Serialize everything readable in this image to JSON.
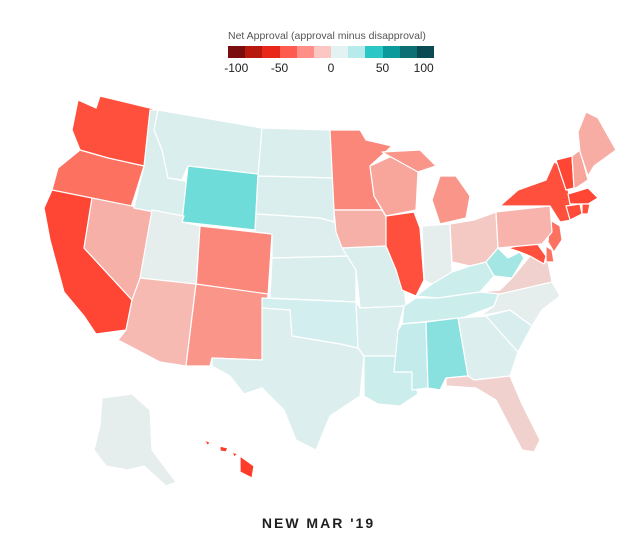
{
  "legend": {
    "title": "Net Approval (approval minus disapproval)",
    "ticks": [
      {
        "value": -100,
        "label": "-100"
      },
      {
        "value": -50,
        "label": "-50"
      },
      {
        "value": 0,
        "label": "0"
      },
      {
        "value": 50,
        "label": "50"
      },
      {
        "value": 100,
        "label": "100"
      }
    ],
    "colors": [
      "#7a0e0e",
      "#b8190f",
      "#e8271a",
      "#ff5b4f",
      "#ff8f87",
      "#fcc6c2",
      "#e3f3f3",
      "#b7ebeb",
      "#2bc6c6",
      "#0d9a9a",
      "#0b6f73",
      "#0a4a52"
    ]
  },
  "map": {
    "states": [
      {
        "id": "WA",
        "net": -40
      },
      {
        "id": "OR",
        "net": -30
      },
      {
        "id": "CA",
        "net": -45
      },
      {
        "id": "NV",
        "net": -15
      },
      {
        "id": "ID",
        "net": 5
      },
      {
        "id": "MT",
        "net": 5
      },
      {
        "id": "WY",
        "net": 30
      },
      {
        "id": "UT",
        "net": 0
      },
      {
        "id": "AZ",
        "net": -12
      },
      {
        "id": "CO",
        "net": -25
      },
      {
        "id": "NM",
        "net": -22
      },
      {
        "id": "ND",
        "net": 5
      },
      {
        "id": "SD",
        "net": 5
      },
      {
        "id": "NE",
        "net": 3
      },
      {
        "id": "KS",
        "net": 5
      },
      {
        "id": "OK",
        "net": 8
      },
      {
        "id": "TX",
        "net": 4
      },
      {
        "id": "MN",
        "net": -25
      },
      {
        "id": "IA",
        "net": -15
      },
      {
        "id": "MO",
        "net": 5
      },
      {
        "id": "AR",
        "net": 5
      },
      {
        "id": "LA",
        "net": 10
      },
      {
        "id": "WI",
        "net": -18
      },
      {
        "id": "IL",
        "net": -40
      },
      {
        "id": "MI",
        "net": -22
      },
      {
        "id": "IN",
        "net": 0
      },
      {
        "id": "OH",
        "net": -8
      },
      {
        "id": "KY",
        "net": 10
      },
      {
        "id": "TN",
        "net": 10
      },
      {
        "id": "MS",
        "net": 12
      },
      {
        "id": "AL",
        "net": 25
      },
      {
        "id": "GA",
        "net": 4
      },
      {
        "id": "FL",
        "net": -6
      },
      {
        "id": "SC",
        "net": 6
      },
      {
        "id": "NC",
        "net": 0
      },
      {
        "id": "VA",
        "net": -6
      },
      {
        "id": "WV",
        "net": 20
      },
      {
        "id": "MD",
        "net": -40
      },
      {
        "id": "DE",
        "net": -30
      },
      {
        "id": "NJ",
        "net": -30
      },
      {
        "id": "PA",
        "net": -14
      },
      {
        "id": "NY",
        "net": -40
      },
      {
        "id": "CT",
        "net": -42
      },
      {
        "id": "RI",
        "net": -40
      },
      {
        "id": "MA",
        "net": -45
      },
      {
        "id": "VT",
        "net": -45
      },
      {
        "id": "NH",
        "net": -18
      },
      {
        "id": "ME",
        "net": -16
      },
      {
        "id": "AK",
        "net": 0
      },
      {
        "id": "HI",
        "net": -50
      }
    ]
  },
  "footer": {
    "title": "NEW MAR '19"
  }
}
